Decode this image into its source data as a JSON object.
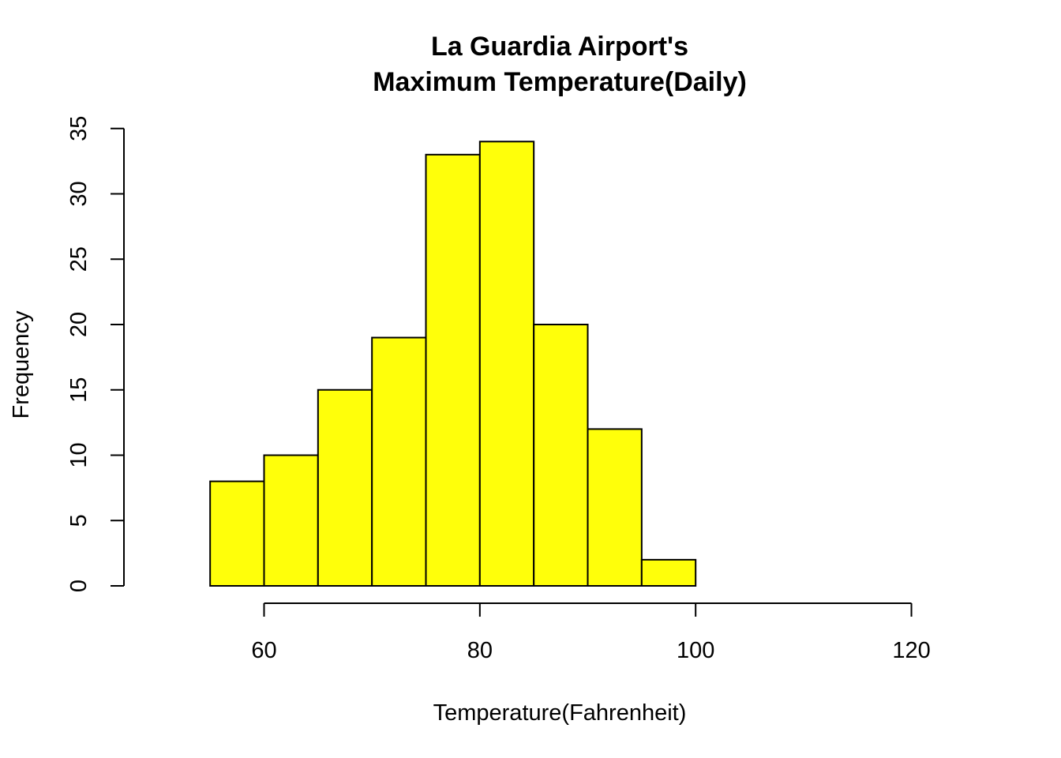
{
  "chart_data": {
    "type": "bar",
    "title": [
      "La Guardia Airport's",
      "Maximum Temperature(Daily)"
    ],
    "xlabel": "Temperature(Fahrenheit)",
    "ylabel": "Frequency",
    "bins": [
      {
        "from": 55,
        "to": 60,
        "count": 8
      },
      {
        "from": 60,
        "to": 65,
        "count": 10
      },
      {
        "from": 65,
        "to": 70,
        "count": 15
      },
      {
        "from": 70,
        "to": 75,
        "count": 19
      },
      {
        "from": 75,
        "to": 80,
        "count": 33
      },
      {
        "from": 80,
        "to": 85,
        "count": 34
      },
      {
        "from": 85,
        "to": 90,
        "count": 20
      },
      {
        "from": 90,
        "to": 95,
        "count": 12
      },
      {
        "from": 95,
        "to": 100,
        "count": 2
      }
    ],
    "xlim": [
      60,
      120
    ],
    "ylim": [
      0,
      35
    ],
    "xticks": [
      60,
      80,
      100,
      120
    ],
    "yticks": [
      0,
      5,
      10,
      15,
      20,
      25,
      30,
      35
    ],
    "bar_color": "#FFFF0A",
    "grid": false
  }
}
